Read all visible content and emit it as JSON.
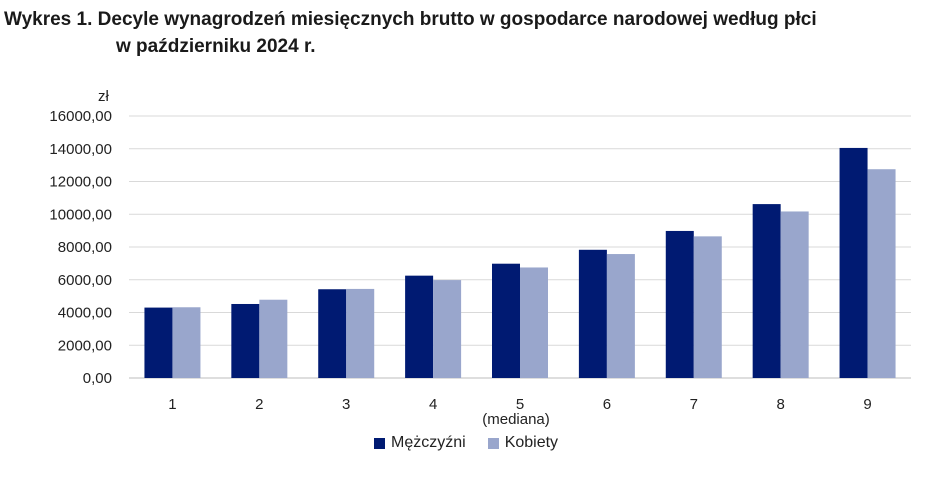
{
  "chart_data": {
    "type": "bar",
    "title_line1": "Wykres 1. Decyle wynagrodzeń miesięcznych brutto w gospodarce narodowej według płci",
    "title_line2": "w październiku 2024 r.",
    "ylabel": "zł",
    "ylim": [
      0,
      16000
    ],
    "yticks": [
      "0,00",
      "2000,00",
      "4000,00",
      "6000,00",
      "8000,00",
      "10000,00",
      "12000,00",
      "14000,00",
      "16000,00"
    ],
    "categories": [
      "1",
      "2",
      "3",
      "4",
      "5",
      "6",
      "7",
      "8",
      "9"
    ],
    "category_sublabel": {
      "5": "(mediana)"
    },
    "series": [
      {
        "name": "Mężczyźni",
        "color": "#001a72",
        "values": [
          4300,
          4520,
          5420,
          6250,
          6980,
          7830,
          8980,
          10620,
          14050
        ]
      },
      {
        "name": "Kobiety",
        "color": "#99a6cc",
        "values": [
          4320,
          4780,
          5440,
          5980,
          6750,
          7570,
          8650,
          10170,
          12750
        ]
      }
    ],
    "grid": true,
    "legend_position": "bottom"
  }
}
